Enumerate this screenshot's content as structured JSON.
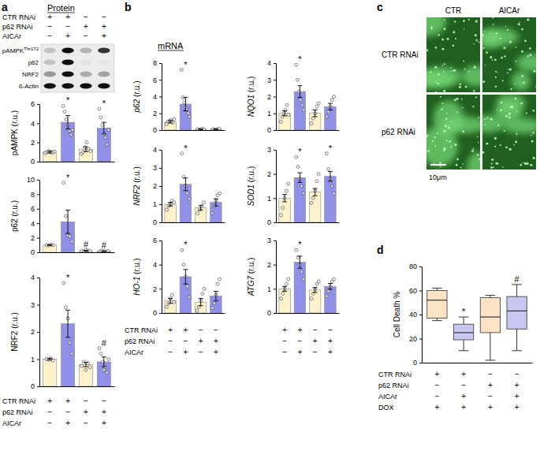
{
  "panels": [
    {
      "letter": "a",
      "title": "Protein"
    },
    {
      "letter": "b",
      "title": "mRNA"
    },
    {
      "letter": "c"
    },
    {
      "letter": "d"
    }
  ],
  "blot": {
    "rows": [
      {
        "label": "pAMPK",
        "superscript": "Thr172"
      },
      {
        "label": "p62"
      },
      {
        "label": "NRF2"
      },
      {
        "label": "ß-Actin"
      }
    ]
  },
  "images": {
    "column_labels": [
      "CTR",
      "AICAr"
    ],
    "row_labels": [
      "CTR RNAi",
      "p62 RNAi"
    ],
    "scale_bar": "10μm"
  },
  "tables": {
    "a_top": {
      "rows": [
        {
          "label": "CTR RNAi",
          "signs": [
            "+",
            "+",
            "−",
            "−"
          ]
        },
        {
          "label": "p62 RNAi",
          "signs": [
            "−",
            "−",
            "+",
            "+"
          ]
        },
        {
          "label": "AICAr",
          "signs": [
            "−",
            "+",
            "−",
            "+"
          ]
        }
      ]
    },
    "a_bottom": {
      "rows": [
        {
          "label": "CTR RNAi",
          "signs": [
            "+",
            "+",
            "−",
            "−"
          ]
        },
        {
          "label": "p62 RNAi",
          "signs": [
            "−",
            "−",
            "+",
            "+"
          ]
        },
        {
          "label": "AICAr",
          "signs": [
            "−",
            "+",
            "−",
            "+"
          ]
        }
      ]
    },
    "b_left": {
      "rows": [
        {
          "label": "CTR RNAi",
          "signs": [
            "+",
            "+",
            "−",
            "−"
          ]
        },
        {
          "label": "p62 RNAi",
          "signs": [
            "−",
            "−",
            "+",
            "+"
          ]
        },
        {
          "label": "AICAr",
          "signs": [
            "−",
            "+",
            "−",
            "+"
          ]
        }
      ]
    },
    "b_right": {
      "rows": [
        {
          "signs": [
            "+",
            "+",
            "−",
            "−"
          ]
        },
        {
          "signs": [
            "−",
            "−",
            "+",
            "+"
          ]
        },
        {
          "signs": [
            "−",
            "+",
            "−",
            "+"
          ]
        }
      ]
    },
    "d": {
      "rows": [
        {
          "label": "CTR RNAi",
          "signs": [
            "+",
            "+",
            "−",
            "−"
          ]
        },
        {
          "label": "p62 RNAi",
          "signs": [
            "−",
            "−",
            "+",
            "+"
          ]
        },
        {
          "label": "AICAr",
          "signs": [
            "−",
            "+",
            "−",
            "+"
          ]
        },
        {
          "label": "DOX",
          "signs": [
            "+",
            "+",
            "+",
            "+"
          ]
        }
      ]
    }
  },
  "chart_data": [
    {
      "type": "bar",
      "y_label": "pAMPK (r.u.)",
      "categories": [
        null,
        null,
        null,
        null
      ],
      "values": [
        1.0,
        4.1,
        1.3,
        3.5
      ],
      "errors": [
        0.1,
        0.7,
        0.25,
        0.6
      ],
      "points": [
        [
          0.9,
          1.0,
          1.1,
          1.0,
          0.95,
          1.05
        ],
        [
          5.8,
          5.2,
          4.4,
          3.8,
          3.2,
          2.8,
          3.3
        ],
        [
          0.8,
          1.0,
          1.5,
          2.0,
          1.3,
          1.1
        ],
        [
          5.5,
          4.6,
          3.8,
          2.9,
          2.5,
          1.8,
          3.3
        ]
      ],
      "colors": [
        "#fdf2cc",
        "#9090e8",
        "#fdf2cc",
        "#9090e8"
      ],
      "annotations": [
        null,
        "*",
        null,
        "*"
      ],
      "ylim": [
        0,
        6
      ],
      "yticks": [
        0,
        2,
        4,
        6
      ]
    },
    {
      "type": "bar",
      "y_label": "p62 (r.u.)",
      "categories": [
        null,
        null,
        null,
        null
      ],
      "values": [
        1.0,
        4.2,
        0.2,
        0.15
      ],
      "errors": [
        0.05,
        1.6,
        0.05,
        0.05
      ],
      "points": [
        [
          1.0,
          0.95,
          1.05,
          1.0
        ],
        [
          9.6,
          5.0,
          2.3,
          2.2,
          1.5
        ],
        [
          0.2,
          0.1,
          0.3,
          0.25,
          0.15
        ],
        [
          0.1,
          0.2,
          0.15,
          0.05,
          0.2
        ]
      ],
      "colors": [
        "#fdf2cc",
        "#9090e8",
        "#fdf2cc",
        "#9090e8"
      ],
      "annotations": [
        null,
        "*",
        "#",
        "#"
      ],
      "ylim": [
        0,
        10
      ],
      "yticks": [
        0,
        2,
        4,
        6,
        8,
        10
      ]
    },
    {
      "type": "bar",
      "y_label": "NRF2 (r.u.)",
      "categories": [
        null,
        null,
        null,
        null
      ],
      "values": [
        1.0,
        2.3,
        0.8,
        0.9
      ],
      "errors": [
        0.03,
        0.5,
        0.08,
        0.18
      ],
      "points": [
        [
          1.0,
          0.98,
          1.02,
          0.95
        ],
        [
          3.8,
          2.9,
          2.5,
          1.6,
          1.2
        ],
        [
          0.75,
          0.9,
          0.6,
          0.85,
          0.7
        ],
        [
          1.4,
          1.2,
          0.9,
          0.6,
          0.7,
          0.5,
          1.0
        ]
      ],
      "colors": [
        "#fdf2cc",
        "#9090e8",
        "#fdf2cc",
        "#9090e8"
      ],
      "annotations": [
        null,
        "*",
        null,
        "#"
      ],
      "ylim": [
        0,
        4
      ],
      "yticks": [
        0,
        1,
        2,
        3,
        4
      ]
    },
    {
      "type": "bar",
      "y_label": "p62 (r.u.)",
      "categories": [
        null,
        null,
        null,
        null
      ],
      "values": [
        1.0,
        3.1,
        0.1,
        0.1
      ],
      "errors": [
        0.15,
        0.8,
        0.03,
        0.03
      ],
      "points": [
        [
          0.7,
          1.0,
          1.1,
          1.2,
          0.9,
          1.3
        ],
        [
          7.2,
          3.9,
          3.3,
          2.7,
          2.4,
          2.0,
          1.6
        ],
        [
          0.1,
          0.05,
          0.15,
          0.1
        ],
        [
          0.1,
          0.05,
          0.1,
          0.15
        ]
      ],
      "colors": [
        "#fdf2cc",
        "#9090e8",
        "#fdf2cc",
        "#9090e8"
      ],
      "annotations": [
        null,
        "*",
        null,
        null
      ],
      "ylim": [
        0,
        8
      ],
      "yticks": [
        0,
        2,
        4,
        6,
        8
      ]
    },
    {
      "type": "bar",
      "y_label": "NQO1 (r.u.)",
      "categories": [
        null,
        null,
        null,
        null
      ],
      "values": [
        1.0,
        2.3,
        1.0,
        1.4
      ],
      "errors": [
        0.15,
        0.35,
        0.2,
        0.2
      ],
      "points": [
        [
          0.5,
          0.8,
          1.0,
          1.2,
          1.5,
          0.9
        ],
        [
          3.9,
          3.0,
          2.3,
          1.8,
          1.5,
          1.2
        ],
        [
          0.4,
          0.7,
          1.0,
          1.4,
          1.6
        ],
        [
          0.8,
          1.1,
          1.4,
          1.8,
          2.0
        ]
      ],
      "colors": [
        "#fdf2cc",
        "#9090e8",
        "#fdf2cc",
        "#9090e8"
      ],
      "annotations": [
        null,
        "*",
        null,
        null
      ],
      "ylim": [
        0,
        4
      ],
      "yticks": [
        0,
        1,
        2,
        3,
        4
      ]
    },
    {
      "type": "bar",
      "y_label": "NRF2 (r.u.)",
      "categories": [
        null,
        null,
        null,
        null
      ],
      "values": [
        1.0,
        2.1,
        0.8,
        1.1
      ],
      "errors": [
        0.1,
        0.35,
        0.12,
        0.2
      ],
      "points": [
        [
          0.7,
          0.9,
          1.0,
          1.2,
          1.1
        ],
        [
          3.8,
          2.5,
          2.0,
          1.6,
          1.3
        ],
        [
          0.5,
          0.7,
          0.9,
          1.1
        ],
        [
          0.5,
          0.9,
          1.2,
          1.5,
          1.6
        ]
      ],
      "colors": [
        "#fdf2cc",
        "#9090e8",
        "#fdf2cc",
        "#9090e8"
      ],
      "annotations": [
        null,
        "*",
        null,
        null
      ],
      "ylim": [
        0,
        4
      ],
      "yticks": [
        0,
        1,
        2,
        3,
        4
      ]
    },
    {
      "type": "bar",
      "y_label": "SOD1 (r.u.)",
      "categories": [
        null,
        null,
        null,
        null
      ],
      "values": [
        1.0,
        1.85,
        1.25,
        1.9
      ],
      "errors": [
        0.15,
        0.2,
        0.15,
        0.2
      ],
      "points": [
        [
          0.3,
          0.6,
          1.0,
          1.3,
          1.6
        ],
        [
          2.7,
          2.3,
          1.8,
          1.5,
          1.2
        ],
        [
          0.8,
          1.0,
          1.3,
          1.7,
          2.0
        ],
        [
          2.85,
          2.2,
          1.8,
          1.5,
          1.2
        ]
      ],
      "colors": [
        "#fdf2cc",
        "#9090e8",
        "#fdf2cc",
        "#9090e8"
      ],
      "annotations": [
        null,
        "*",
        null,
        "*"
      ],
      "ylim": [
        0,
        3
      ],
      "yticks": [
        0,
        1,
        2,
        3
      ]
    },
    {
      "type": "bar",
      "y_label": "HO-1 (r.u.)",
      "categories": [
        null,
        null,
        null,
        null
      ],
      "values": [
        1.0,
        3.0,
        0.9,
        1.4
      ],
      "errors": [
        0.2,
        0.6,
        0.3,
        0.4
      ],
      "points": [
        [
          0.5,
          0.8,
          1.2,
          1.5,
          0.9
        ],
        [
          5.2,
          4.0,
          3.0,
          2.2,
          1.3
        ],
        [
          0.2,
          0.5,
          1.0,
          1.6,
          2.0
        ],
        [
          0.4,
          0.8,
          1.5,
          2.4,
          2.8
        ]
      ],
      "colors": [
        "#fdf2cc",
        "#9090e8",
        "#fdf2cc",
        "#9090e8"
      ],
      "annotations": [
        null,
        "*",
        null,
        null
      ],
      "ylim": [
        0,
        6
      ],
      "yticks": [
        0,
        2,
        4,
        6
      ]
    },
    {
      "type": "bar",
      "y_label": "ATG7 (r.u.)",
      "categories": [
        null,
        null,
        null,
        null
      ],
      "values": [
        1.0,
        2.1,
        0.95,
        1.1
      ],
      "errors": [
        0.1,
        0.25,
        0.1,
        0.12
      ],
      "points": [
        [
          0.6,
          0.8,
          1.0,
          1.2,
          1.4
        ],
        [
          2.6,
          2.3,
          2.0,
          1.7,
          1.4
        ],
        [
          0.6,
          0.8,
          1.0,
          1.2,
          1.3
        ],
        [
          0.7,
          0.9,
          1.1,
          1.3,
          1.4
        ]
      ],
      "colors": [
        "#fdf2cc",
        "#9090e8",
        "#fdf2cc",
        "#9090e8"
      ],
      "annotations": [
        null,
        "*",
        null,
        null
      ],
      "ylim": [
        0,
        3
      ],
      "yticks": [
        0,
        1,
        2,
        3
      ]
    },
    {
      "type": "box",
      "y_label": "Cell Death %",
      "categories": [
        null,
        null,
        null,
        null
      ],
      "whisker_low": [
        35,
        10,
        2,
        10
      ],
      "q1": [
        37,
        19,
        25,
        28
      ],
      "median": [
        52,
        25,
        38,
        43
      ],
      "q3": [
        60,
        32,
        54,
        55
      ],
      "whisker_high": [
        62,
        38,
        56,
        65
      ],
      "colors": [
        "#fbe3c3",
        "#c7c7f2",
        "#fbe3c3",
        "#c7c7f2"
      ],
      "annotations": [
        null,
        "*",
        null,
        "#"
      ],
      "ylim": [
        0,
        80
      ],
      "yticks": [
        0,
        20,
        40,
        60,
        80
      ]
    }
  ]
}
